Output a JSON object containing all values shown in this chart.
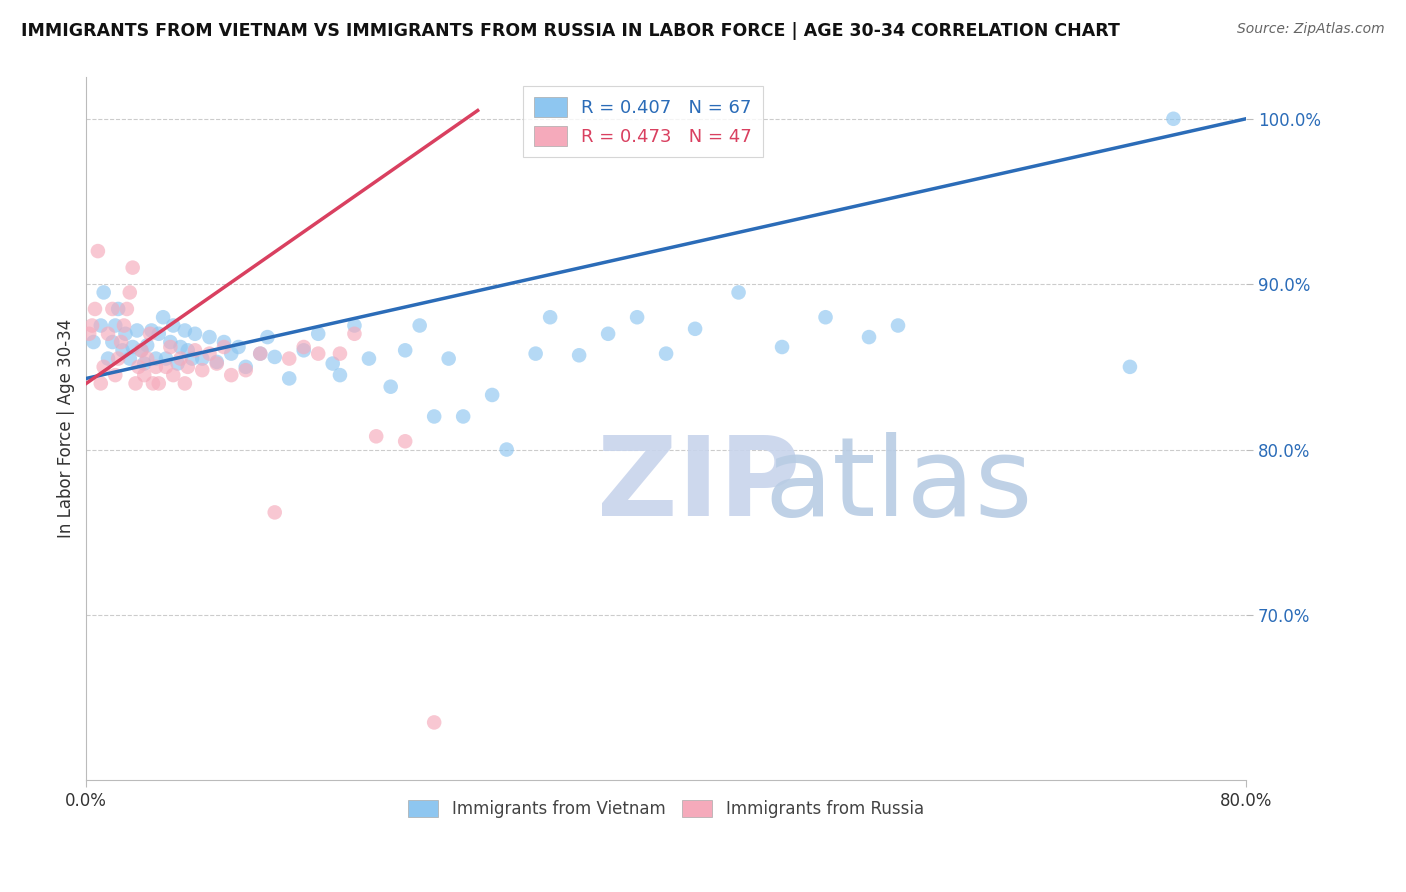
{
  "title": "IMMIGRANTS FROM VIETNAM VS IMMIGRANTS FROM RUSSIA IN LABOR FORCE | AGE 30-34 CORRELATION CHART",
  "source": "Source: ZipAtlas.com",
  "ylabel": "In Labor Force | Age 30-34",
  "y_ticks": [
    0.7,
    0.8,
    0.9,
    1.0
  ],
  "y_tick_labels": [
    "70.0%",
    "80.0%",
    "90.0%",
    "100.0%"
  ],
  "legend_blue_label": "Immigrants from Vietnam",
  "legend_pink_label": "Immigrants from Russia",
  "R_blue": 0.407,
  "N_blue": 67,
  "R_pink": 0.473,
  "N_pink": 47,
  "blue_color": "#8EC6F0",
  "pink_color": "#F5AABB",
  "blue_line_color": "#2B6CB8",
  "pink_line_color": "#D94060",
  "xlim": [
    0.0,
    0.8
  ],
  "ylim": [
    0.6,
    1.025
  ],
  "blue_x": [
    0.005,
    0.01,
    0.012,
    0.015,
    0.018,
    0.02,
    0.022,
    0.025,
    0.027,
    0.03,
    0.032,
    0.035,
    0.038,
    0.04,
    0.042,
    0.045,
    0.048,
    0.05,
    0.053,
    0.055,
    0.058,
    0.06,
    0.063,
    0.065,
    0.068,
    0.07,
    0.073,
    0.075,
    0.08,
    0.085,
    0.09,
    0.095,
    0.1,
    0.105,
    0.11,
    0.12,
    0.125,
    0.13,
    0.14,
    0.15,
    0.16,
    0.17,
    0.175,
    0.185,
    0.195,
    0.21,
    0.22,
    0.23,
    0.24,
    0.25,
    0.26,
    0.28,
    0.29,
    0.31,
    0.32,
    0.34,
    0.36,
    0.38,
    0.4,
    0.42,
    0.45,
    0.48,
    0.51,
    0.54,
    0.56,
    0.72,
    0.75
  ],
  "blue_y": [
    0.865,
    0.875,
    0.895,
    0.855,
    0.865,
    0.875,
    0.885,
    0.86,
    0.87,
    0.855,
    0.862,
    0.872,
    0.86,
    0.852,
    0.863,
    0.872,
    0.855,
    0.87,
    0.88,
    0.855,
    0.865,
    0.875,
    0.852,
    0.862,
    0.872,
    0.86,
    0.855,
    0.87,
    0.855,
    0.868,
    0.853,
    0.865,
    0.858,
    0.862,
    0.85,
    0.858,
    0.868,
    0.856,
    0.843,
    0.86,
    0.87,
    0.852,
    0.845,
    0.875,
    0.855,
    0.838,
    0.86,
    0.875,
    0.82,
    0.855,
    0.82,
    0.833,
    0.8,
    0.858,
    0.88,
    0.857,
    0.87,
    0.88,
    0.858,
    0.873,
    0.895,
    0.862,
    0.88,
    0.868,
    0.875,
    0.85,
    1.0
  ],
  "pink_x": [
    0.002,
    0.004,
    0.006,
    0.008,
    0.01,
    0.012,
    0.015,
    0.018,
    0.02,
    0.022,
    0.024,
    0.026,
    0.028,
    0.03,
    0.032,
    0.034,
    0.036,
    0.038,
    0.04,
    0.042,
    0.044,
    0.046,
    0.048,
    0.05,
    0.055,
    0.058,
    0.06,
    0.065,
    0.068,
    0.07,
    0.075,
    0.08,
    0.085,
    0.09,
    0.095,
    0.1,
    0.11,
    0.12,
    0.13,
    0.14,
    0.15,
    0.16,
    0.175,
    0.185,
    0.2,
    0.22,
    0.24
  ],
  "pink_y": [
    0.87,
    0.875,
    0.885,
    0.92,
    0.84,
    0.85,
    0.87,
    0.885,
    0.845,
    0.855,
    0.865,
    0.875,
    0.885,
    0.895,
    0.91,
    0.84,
    0.85,
    0.86,
    0.845,
    0.855,
    0.87,
    0.84,
    0.85,
    0.84,
    0.85,
    0.862,
    0.845,
    0.855,
    0.84,
    0.85,
    0.86,
    0.848,
    0.858,
    0.852,
    0.862,
    0.845,
    0.848,
    0.858,
    0.762,
    0.855,
    0.862,
    0.858,
    0.858,
    0.87,
    0.808,
    0.805,
    0.635
  ],
  "blue_line_x": [
    0.0,
    0.8
  ],
  "blue_line_y": [
    0.843,
    1.0
  ],
  "pink_line_x": [
    0.0,
    0.27
  ],
  "pink_line_y": [
    0.84,
    1.005
  ],
  "watermark_zip_color": "#D0DCF0",
  "watermark_atlas_color": "#C8D8E8"
}
